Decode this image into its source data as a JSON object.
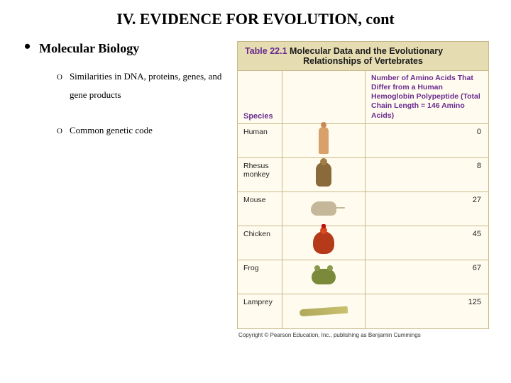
{
  "title": "IV.  EVIDENCE FOR EVOLUTION, cont",
  "main_bullet": "Molecular Biology",
  "sub_bullets": [
    "Similarities in DNA, proteins, genes, and gene products",
    "Common genetic code"
  ],
  "table": {
    "title_prefix": "Table 22.1",
    "title_main": "Molecular Data and the Evolutionary",
    "title_sub": "Relationships of Vertebrates",
    "col_species": "Species",
    "col_value": "Number of Amino Acids That Differ from a Human Hemoglobin Polypeptide (Total Chain Length = 146 Amino Acids)",
    "rows": [
      {
        "name": "Human",
        "value": "0",
        "icon": "human"
      },
      {
        "name": "Rhesus monkey",
        "value": "8",
        "icon": "monkey"
      },
      {
        "name": "Mouse",
        "value": "27",
        "icon": "mouse"
      },
      {
        "name": "Chicken",
        "value": "45",
        "icon": "chicken"
      },
      {
        "name": "Frog",
        "value": "67",
        "icon": "frog"
      },
      {
        "name": "Lamprey",
        "value": "125",
        "icon": "lamprey"
      }
    ],
    "header_bg": "#e6dcb2",
    "cell_bg": "#fffcef",
    "border_color": "#c9b98a",
    "header_text_color": "#6a2b8f"
  },
  "credit": "Copyright © Pearson Education, Inc., publishing as Benjamin Cummings"
}
